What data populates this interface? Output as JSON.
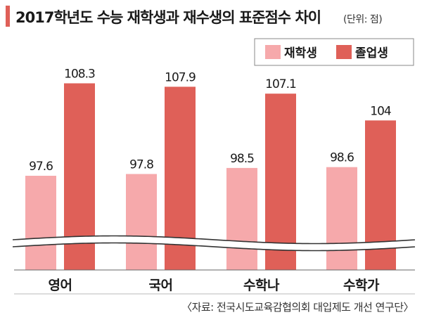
{
  "chart_data": {
    "type": "bar",
    "title": "2017학년도 수능 재학생과 재수생의 표준점수 차이",
    "unit_note": "(단위: 점)",
    "categories": [
      "영어",
      "국어",
      "수학나",
      "수학가"
    ],
    "series": [
      {
        "name": "재학생",
        "color": "#f6a9ab",
        "values": [
          97.6,
          97.8,
          98.5,
          98.6
        ],
        "labels": [
          "97.6",
          "97.8",
          "98.5",
          "98.6"
        ]
      },
      {
        "name": "졸업생",
        "color": "#df6058",
        "values": [
          108.3,
          107.9,
          107.1,
          104
        ],
        "labels": [
          "108.3",
          "107.9",
          "107.1",
          "104"
        ]
      }
    ],
    "axis_break": true,
    "legend_position": "top-right",
    "grid": false
  },
  "source": "〈자료: 전국시도교육감협의회 대입제도 개선 연구단〉",
  "colors": {
    "title_bar": "#df6058",
    "text": "#1a1a1a",
    "break_band": "#ffffff",
    "break_line": "#333333"
  }
}
